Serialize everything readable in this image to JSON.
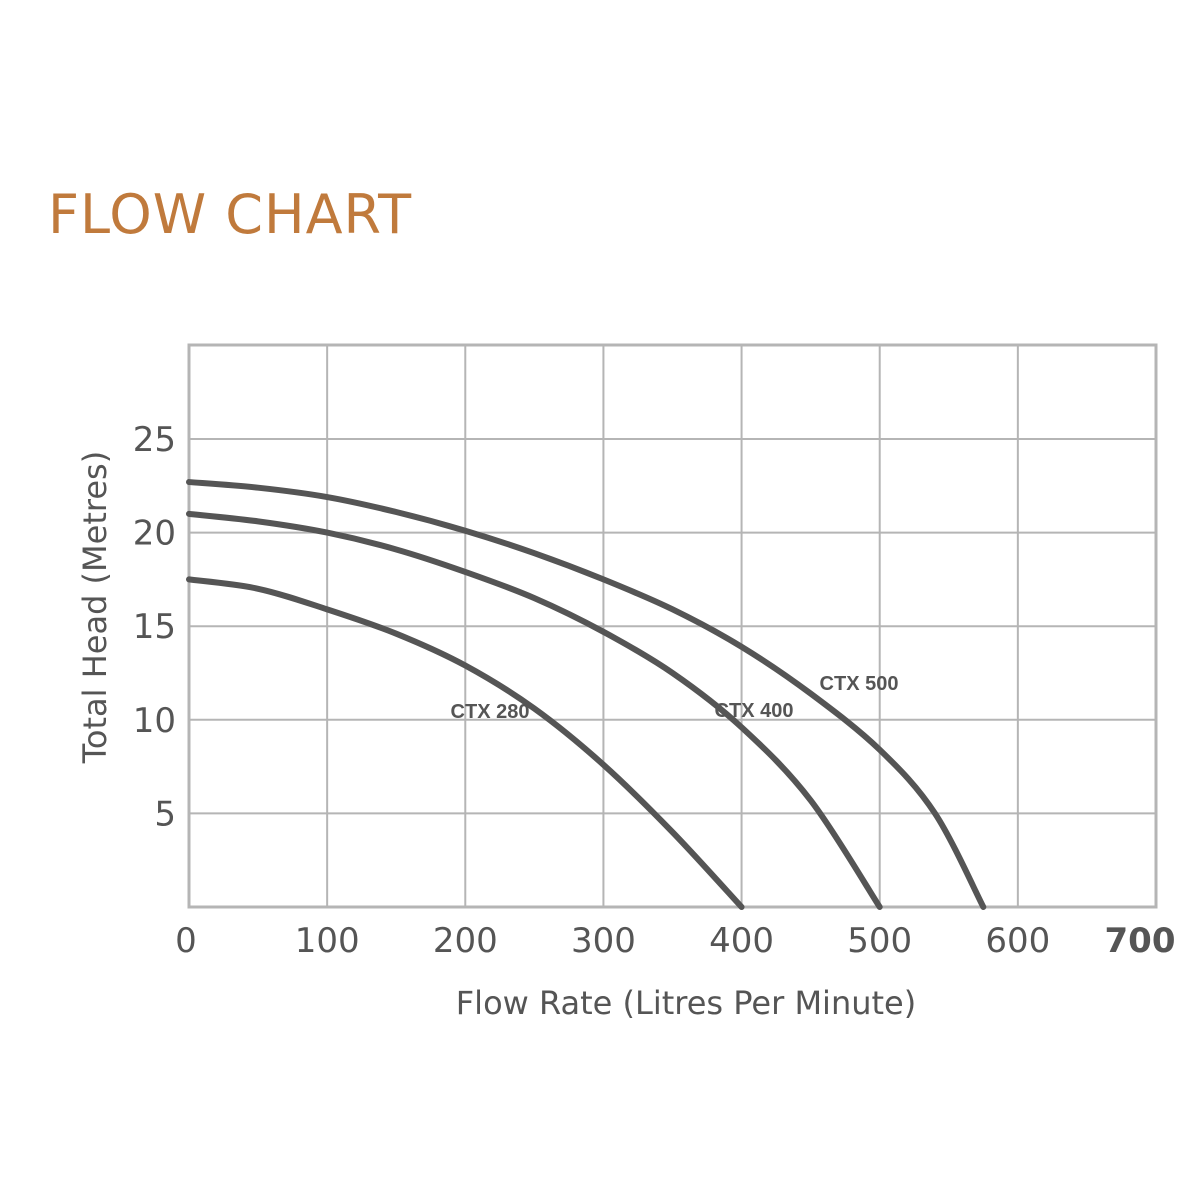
{
  "page": {
    "title": "FLOW CHART",
    "title_color": "#c07a3c"
  },
  "chart_data": {
    "type": "line",
    "title": "",
    "xlabel": "Flow Rate (Litres Per Minute)",
    "ylabel": "Total Head (Metres)",
    "xlim": [
      0,
      700
    ],
    "ylim": [
      0,
      25
    ],
    "x_ticks": [
      0,
      100,
      200,
      300,
      400,
      500,
      600,
      700
    ],
    "y_ticks": [
      5,
      10,
      15,
      20,
      25
    ],
    "x_tick_labels": [
      "0",
      "100",
      "200",
      "300",
      "400",
      "500",
      "600",
      "700"
    ],
    "y_tick_labels": [
      "5",
      "10",
      "15",
      "20",
      "25"
    ],
    "grid": true,
    "legend": "none (labels placed on curves)",
    "line_color": "#555555",
    "grid_color": "#b5b5b5",
    "series": [
      {
        "name": "CTX 280",
        "x": [
          0,
          50,
          100,
          150,
          200,
          250,
          300,
          350,
          400
        ],
        "y": [
          17.5,
          17.0,
          15.9,
          14.6,
          12.9,
          10.6,
          7.6,
          4.0,
          0
        ]
      },
      {
        "name": "CTX 400",
        "x": [
          0,
          50,
          100,
          150,
          200,
          250,
          300,
          350,
          400,
          450,
          500
        ],
        "y": [
          21.0,
          20.6,
          20.0,
          19.1,
          17.9,
          16.5,
          14.7,
          12.5,
          9.6,
          5.7,
          0
        ]
      },
      {
        "name": "CTX 500",
        "x": [
          0,
          50,
          100,
          150,
          200,
          250,
          300,
          350,
          400,
          450,
          500,
          540,
          575
        ],
        "y": [
          22.7,
          22.4,
          21.9,
          21.1,
          20.1,
          18.9,
          17.5,
          15.9,
          13.9,
          11.4,
          8.4,
          5.0,
          0
        ]
      }
    ]
  }
}
